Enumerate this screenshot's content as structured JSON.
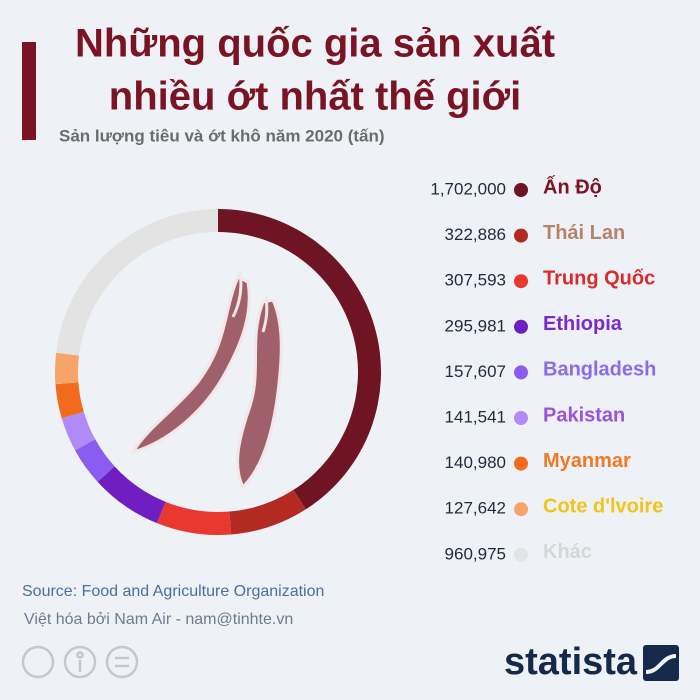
{
  "chart_data": {
    "type": "donut",
    "title": [
      "Những quốc gia sản xuất",
      "nhiều ớt nhất thế giới"
    ],
    "subtitle": "Sản lượng tiêu và ớt khô năm 2020 (tấn)",
    "categories": [
      "Ấn Độ",
      "Thái Lan",
      "Trung Quốc",
      "Ethiopia",
      "Bangladesh",
      "Pakistan",
      "Myanmar",
      "Cote d'lvoire",
      "Khác"
    ],
    "values": [
      1702000,
      322886,
      307593,
      295981,
      157607,
      141541,
      140980,
      127642,
      960975
    ],
    "value_labels": [
      "1,702,000",
      "322,886",
      "307,593",
      "295,981",
      "157,607",
      "141,541",
      "140,980",
      "127,642",
      "960,975"
    ],
    "colors": [
      "#6e1423",
      "#b32a22",
      "#e8382f",
      "#6f1fc1",
      "#8a5cf0",
      "#b08af5",
      "#f26b1d",
      "#f7a46b",
      "#e3e3e3"
    ],
    "label_colors": [
      "#7a1425",
      "#b5836b",
      "#d92b2b",
      "#7c2ad0",
      "#8a6ce8",
      "#9a53e0",
      "#ee7a26",
      "#f2c417",
      "#d6d6d6"
    ],
    "source": "Source: Food and Agriculture Organization",
    "note": "Việt hóa bởi Nam Air - nam@tinhte.vn",
    "brand": "statista"
  }
}
